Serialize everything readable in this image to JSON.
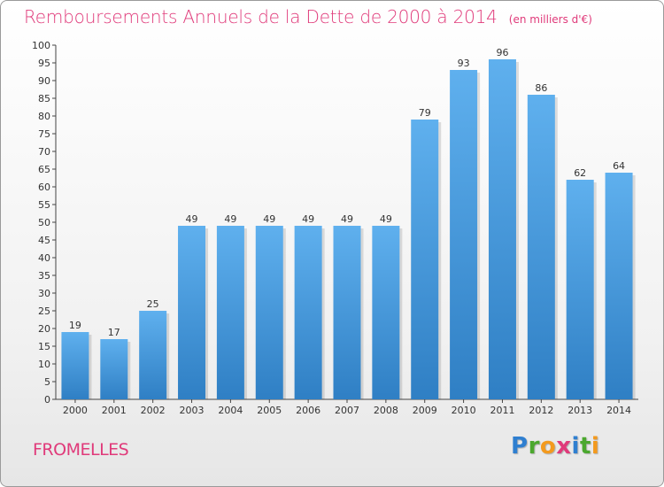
{
  "chart_data": {
    "type": "bar",
    "title": "Remboursements Annuels de la Dette de 2000 à 2014",
    "subtitle": "(en milliers d'€)",
    "categories": [
      "2000",
      "2001",
      "2002",
      "2003",
      "2004",
      "2005",
      "2006",
      "2007",
      "2008",
      "2009",
      "2010",
      "2011",
      "2012",
      "2013",
      "2014"
    ],
    "values": [
      19,
      17,
      25,
      49,
      49,
      49,
      49,
      49,
      49,
      79,
      93,
      96,
      86,
      62,
      64
    ],
    "xlabel": "",
    "ylabel": "",
    "ylim": [
      0,
      100
    ],
    "ytick_step": 5,
    "grid": false,
    "bar_color": "#3a8fd6"
  },
  "commune": "FROMELLES",
  "logo": {
    "letters": [
      {
        "char": "P",
        "color": "#2f7fd0"
      },
      {
        "char": "r",
        "color": "#4ba82e"
      },
      {
        "char": "o",
        "color": "#f39a1e"
      },
      {
        "char": "x",
        "color": "#e03a7a"
      },
      {
        "char": "i",
        "color": "#2f7fd0"
      },
      {
        "char": "t",
        "color": "#4ba82e"
      },
      {
        "char": "i",
        "color": "#f39a1e"
      }
    ]
  }
}
